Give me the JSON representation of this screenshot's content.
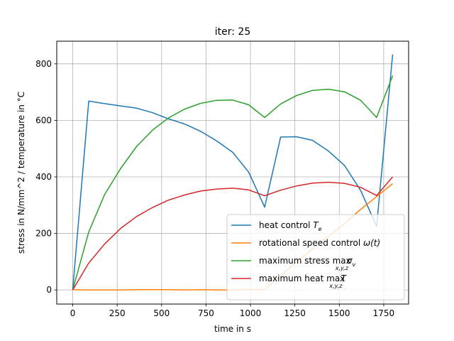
{
  "chart_data": {
    "type": "line",
    "title": "iter: 25",
    "xlabel": "time in s",
    "ylabel": "stress in N/mm^2 / temperature in °C",
    "xlim": [
      -90,
      1890
    ],
    "ylim": [
      -50,
      880
    ],
    "xticks": [
      0,
      250,
      500,
      750,
      1000,
      1250,
      1500,
      1750
    ],
    "yticks": [
      0,
      200,
      400,
      600,
      800
    ],
    "grid": true,
    "legend_position": "lower-right",
    "series": [
      {
        "name": "heat control T_e",
        "legend_main": "heat control ",
        "legend_math": "T",
        "legend_sub": "e",
        "color": "#1f77b4",
        "x": [
          0,
          90,
          180,
          270,
          360,
          450,
          540,
          630,
          720,
          810,
          900,
          990,
          1080,
          1170,
          1260,
          1350,
          1440,
          1530,
          1620,
          1710,
          1800
        ],
        "y": [
          0,
          668,
          659,
          651,
          643,
          627,
          605,
          587,
          561,
          527,
          487,
          417,
          293,
          541,
          542,
          529,
          491,
          440,
          352,
          225,
          833
        ]
      },
      {
        "name": "rotational speed control ω(t)",
        "legend_main": "rotational speed control ",
        "legend_math": "ω(t)",
        "legend_sub": "",
        "color": "#ff7f0e",
        "x": [
          0,
          90,
          180,
          270,
          360,
          450,
          540,
          630,
          720,
          810,
          900,
          990,
          1080,
          1170,
          1260,
          1350,
          1440,
          1530,
          1620,
          1710,
          1800
        ],
        "y": [
          1,
          0,
          0,
          0,
          1,
          1,
          1,
          0,
          1,
          0,
          0,
          1,
          1,
          50,
          100,
          145,
          190,
          235,
          285,
          330,
          376
        ]
      },
      {
        "name": "maximum stress max_{x,y,z} σ_v",
        "legend_main": "maximum stress ",
        "legend_math": "max",
        "legend_sub": "x,y,z",
        "legend_tail": "σ",
        "legend_tail_sub": "v",
        "color": "#2ca02c",
        "x": [
          0,
          90,
          180,
          270,
          360,
          450,
          540,
          630,
          720,
          810,
          900,
          990,
          1080,
          1170,
          1260,
          1350,
          1440,
          1530,
          1620,
          1710,
          1800
        ],
        "y": [
          0,
          205,
          338,
          430,
          508,
          566,
          609,
          640,
          660,
          671,
          672,
          655,
          610,
          658,
          688,
          706,
          710,
          701,
          671,
          610,
          758
        ]
      },
      {
        "name": "maximum heat max_{x,y,z} T",
        "legend_main": "maximum heat ",
        "legend_math": "max",
        "legend_sub": "x,y,z",
        "legend_tail": "T",
        "legend_tail_sub": "",
        "color": "#d62728",
        "x": [
          0,
          90,
          180,
          270,
          360,
          450,
          540,
          630,
          720,
          810,
          900,
          990,
          1080,
          1170,
          1260,
          1350,
          1440,
          1530,
          1620,
          1710,
          1800
        ],
        "y": [
          0,
          95,
          163,
          218,
          260,
          292,
          318,
          336,
          350,
          357,
          360,
          354,
          333,
          353,
          368,
          378,
          381,
          377,
          363,
          334,
          400
        ]
      }
    ]
  }
}
